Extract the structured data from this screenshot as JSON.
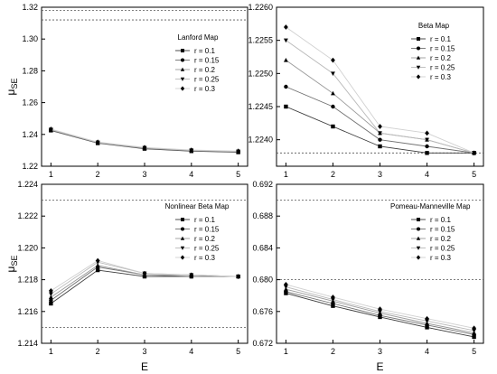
{
  "figure": {
    "xlabel_bottom": "E",
    "ylabel_main": "μ",
    "ylabel_sub": "SE"
  },
  "chart_data": [
    {
      "type": "line",
      "title": "Lanford Map",
      "x": [
        1,
        2,
        3,
        4,
        5
      ],
      "xlim": [
        0.8,
        5.2
      ],
      "xticks": [
        "1",
        "2",
        "3",
        "4",
        "5"
      ],
      "ylim": [
        1.22,
        1.32
      ],
      "yticks": [
        "1.22",
        "1.24",
        "1.26",
        "1.28",
        "1.30",
        "1.32"
      ],
      "ref_lines": [
        1.312,
        1.318
      ],
      "show_xlabel": false,
      "show_ylabel": true,
      "series": [
        {
          "name": "r = 0.1",
          "marker": "square",
          "values": [
            1.2425,
            1.2345,
            1.231,
            1.2295,
            1.2288
          ]
        },
        {
          "name": "r = 0.15",
          "marker": "circle",
          "values": [
            1.2427,
            1.2347,
            1.2312,
            1.2297,
            1.229
          ]
        },
        {
          "name": "r = 0.2",
          "marker": "triangle-up",
          "values": [
            1.2429,
            1.2349,
            1.2314,
            1.2299,
            1.2292
          ]
        },
        {
          "name": "r = 0.25",
          "marker": "triangle-down",
          "values": [
            1.2431,
            1.235,
            1.2316,
            1.23,
            1.2293
          ]
        },
        {
          "name": "r = 0.3",
          "marker": "diamond",
          "values": [
            1.2433,
            1.2352,
            1.2318,
            1.2302,
            1.2295
          ]
        }
      ]
    },
    {
      "type": "line",
      "title": "Beta Map",
      "x": [
        1,
        2,
        3,
        4,
        5
      ],
      "xlim": [
        0.8,
        5.2
      ],
      "xticks": [
        "1",
        "2",
        "3",
        "4",
        "5"
      ],
      "ylim": [
        1.2236,
        1.226
      ],
      "yticks": [
        "1.2240",
        "1.2245",
        "1.2250",
        "1.2255",
        "1.2260"
      ],
      "ref_lines": [
        1.2238
      ],
      "show_xlabel": false,
      "show_ylabel": false,
      "series": [
        {
          "name": "r = 0.1",
          "marker": "square",
          "values": [
            1.2245,
            1.2242,
            1.2239,
            1.2238,
            1.2238
          ]
        },
        {
          "name": "r = 0.15",
          "marker": "circle",
          "values": [
            1.2248,
            1.2245,
            1.224,
            1.2239,
            1.2238
          ]
        },
        {
          "name": "r = 0.2",
          "marker": "triangle-up",
          "values": [
            1.2252,
            1.2247,
            1.2241,
            1.224,
            1.2238
          ]
        },
        {
          "name": "r = 0.25",
          "marker": "triangle-down",
          "values": [
            1.2255,
            1.225,
            1.2241,
            1.224,
            1.2238
          ]
        },
        {
          "name": "r = 0.3",
          "marker": "diamond",
          "values": [
            1.2257,
            1.2252,
            1.2242,
            1.2241,
            1.2238
          ]
        }
      ]
    },
    {
      "type": "line",
      "title": "Nonlinear Beta Map",
      "x": [
        1,
        2,
        3,
        4,
        5
      ],
      "xlim": [
        0.8,
        5.2
      ],
      "xticks": [
        "1",
        "2",
        "3",
        "4",
        "5"
      ],
      "ylim": [
        1.214,
        1.224
      ],
      "yticks": [
        "1.214",
        "1.216",
        "1.218",
        "1.220",
        "1.222",
        "1.224"
      ],
      "ref_lines": [
        1.223,
        1.215
      ],
      "show_xlabel": true,
      "show_ylabel": true,
      "series": [
        {
          "name": "r = 0.1",
          "marker": "square",
          "values": [
            1.2165,
            1.2186,
            1.2182,
            1.2182,
            1.2182
          ]
        },
        {
          "name": "r = 0.15",
          "marker": "circle",
          "values": [
            1.2167,
            1.2188,
            1.2183,
            1.2182,
            1.2182
          ]
        },
        {
          "name": "r = 0.2",
          "marker": "triangle-up",
          "values": [
            1.2169,
            1.2189,
            1.2183,
            1.2183,
            1.2182
          ]
        },
        {
          "name": "r = 0.25",
          "marker": "triangle-down",
          "values": [
            1.2171,
            1.2191,
            1.2184,
            1.2183,
            1.2182
          ]
        },
        {
          "name": "r = 0.3",
          "marker": "diamond",
          "values": [
            1.2173,
            1.2192,
            1.2184,
            1.2183,
            1.2182
          ]
        }
      ]
    },
    {
      "type": "line",
      "title": "Pomeau-Manneville Map",
      "x": [
        1,
        2,
        3,
        4,
        5
      ],
      "xlim": [
        0.8,
        5.2
      ],
      "xticks": [
        "1",
        "2",
        "3",
        "4",
        "5"
      ],
      "ylim": [
        0.672,
        0.692
      ],
      "yticks": [
        "0.672",
        "0.676",
        "0.680",
        "0.684",
        "0.688",
        "0.692"
      ],
      "ref_lines": [
        0.69,
        0.68
      ],
      "show_xlabel": true,
      "show_ylabel": false,
      "series": [
        {
          "name": "r = 0.1",
          "marker": "square",
          "values": [
            0.6783,
            0.6767,
            0.6753,
            0.674,
            0.6728
          ]
        },
        {
          "name": "r = 0.15",
          "marker": "circle",
          "values": [
            0.6785,
            0.677,
            0.6755,
            0.6743,
            0.6731
          ]
        },
        {
          "name": "r = 0.2",
          "marker": "triangle-up",
          "values": [
            0.6788,
            0.6773,
            0.6758,
            0.6745,
            0.6733
          ]
        },
        {
          "name": "r = 0.25",
          "marker": "triangle-down",
          "values": [
            0.6791,
            0.6775,
            0.676,
            0.6748,
            0.6736
          ]
        },
        {
          "name": "r = 0.3",
          "marker": "diamond",
          "values": [
            0.6794,
            0.6778,
            0.6763,
            0.6751,
            0.6739
          ]
        }
      ]
    }
  ]
}
